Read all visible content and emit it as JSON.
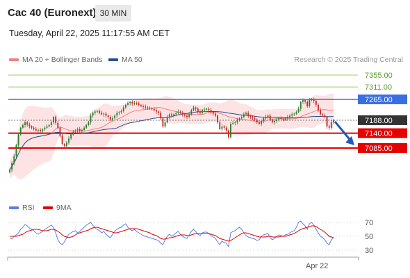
{
  "header": {
    "instrument": "Cac 40 (Euronext)",
    "timeframe": "30 MIN",
    "datetime": "Tuesday, April 22, 2025 11:17:55 AM CET"
  },
  "legend": {
    "ma20_label": "MA 20 + Bollinger Bands",
    "ma50_label": "MA 50",
    "credit": "Research © 2025 Trading Central",
    "rsi_label": "RSI",
    "rsi_ma_label": "9MA"
  },
  "colors": {
    "up": "#2e7d32",
    "down": "#c62828",
    "support": "#e60000",
    "resistance": "#3b6fe0",
    "target": "#9ccc65",
    "current": "#333333",
    "ma20": "#f08080",
    "ma50": "#2a4f8f",
    "band_fill": "#fde0e0",
    "rsi": "#5b7fe0",
    "rsi_ma": "#e00000",
    "arrow": "#2459b3"
  },
  "chart_data": [
    {
      "type": "candlestick",
      "title": "Cac 40 (Euronext)",
      "interval": "30 MIN",
      "y_axis": {
        "min": 6900,
        "max": 7400
      },
      "price_levels": [
        {
          "value": 7355.0,
          "label": "7355.00",
          "kind": "target"
        },
        {
          "value": 7311.0,
          "label": "7311.00",
          "kind": "target"
        },
        {
          "value": 7265.0,
          "label": "7265.00",
          "kind": "resistance"
        },
        {
          "value": 7188.0,
          "label": "7188.00",
          "kind": "current"
        },
        {
          "value": 7140.0,
          "label": "7140.00",
          "kind": "support"
        },
        {
          "value": 7085.0,
          "label": "7085.00",
          "kind": "support"
        }
      ],
      "x_tick_labels": [
        "Apr 22"
      ],
      "close_values": [
        7005,
        7030,
        7055,
        7095,
        7135,
        7160,
        7170,
        7180,
        7172,
        7165,
        7160,
        7155,
        7150,
        7152,
        7148,
        7154,
        7160,
        7165,
        7170,
        7180,
        7200,
        7178,
        7160,
        7130,
        7100,
        7092,
        7105,
        7120,
        7135,
        7145,
        7150,
        7155,
        7148,
        7152,
        7160,
        7170,
        7180,
        7205,
        7215,
        7220,
        7222,
        7215,
        7210,
        7212,
        7205,
        7200,
        7190,
        7195,
        7205,
        7215,
        7218,
        7222,
        7235,
        7245,
        7252,
        7256,
        7250,
        7252,
        7250,
        7244,
        7240,
        7238,
        7235,
        7233,
        7232,
        7230,
        7225,
        7220,
        7215,
        7195,
        7165,
        7180,
        7200,
        7210,
        7205,
        7210,
        7215,
        7220,
        7215,
        7210,
        7205,
        7200,
        7210,
        7225,
        7235,
        7230,
        7220,
        7215,
        7225,
        7228,
        7230,
        7225,
        7218,
        7212,
        7205,
        7180,
        7155,
        7165,
        7160,
        7150,
        7125,
        7175,
        7178,
        7180,
        7190,
        7195,
        7200,
        7210,
        7215,
        7205,
        7200,
        7195,
        7190,
        7180,
        7175,
        7185,
        7195,
        7200,
        7205,
        7190,
        7180,
        7185,
        7190,
        7196,
        7193,
        7189,
        7195,
        7200,
        7205,
        7210,
        7212,
        7218,
        7230,
        7255,
        7262,
        7256,
        7240,
        7262,
        7265,
        7260,
        7245,
        7225,
        7210,
        7206,
        7200,
        7165,
        7160,
        7180,
        7188
      ]
    },
    {
      "type": "line",
      "title": "RSI",
      "series": [
        {
          "name": "RSI",
          "values": [
            48,
            46,
            50,
            52,
            55,
            60,
            63,
            67,
            65,
            62,
            60,
            58,
            55,
            53,
            55,
            57,
            60,
            62,
            64,
            66,
            63,
            55,
            45,
            40,
            38,
            42,
            48,
            53,
            55,
            57,
            58,
            55,
            57,
            60,
            63,
            66,
            68,
            70,
            66,
            62,
            60,
            58,
            55,
            57,
            53,
            50,
            48,
            53,
            57,
            60,
            62,
            63,
            66,
            68,
            63,
            60,
            58,
            60,
            57,
            55,
            53,
            51,
            50,
            49,
            48,
            47,
            46,
            45,
            44,
            40,
            38,
            45,
            50,
            53,
            50,
            52,
            55,
            57,
            53,
            50,
            48,
            47,
            52,
            57,
            60,
            57,
            53,
            51,
            55,
            56,
            56,
            54,
            51,
            49,
            47,
            42,
            38,
            43,
            41,
            40,
            35,
            55,
            57,
            58,
            61,
            63,
            60,
            55,
            51,
            49,
            48,
            47,
            46,
            44,
            45,
            50,
            52,
            53,
            54,
            48,
            45,
            47,
            50,
            52,
            51,
            50,
            52,
            53,
            55,
            57,
            58,
            63,
            70,
            72,
            68,
            65,
            60,
            68,
            70,
            66,
            60,
            55,
            50,
            48,
            45,
            40,
            38,
            45,
            48
          ]
        },
        {
          "name": "9MA",
          "values": [
            50,
            50,
            50,
            50,
            51,
            52,
            53,
            55,
            57,
            58,
            59,
            60,
            60,
            60,
            59,
            58,
            58,
            58,
            59,
            60,
            60,
            59,
            57,
            55,
            52,
            50,
            49,
            48,
            49,
            50,
            52,
            54,
            55,
            56,
            57,
            58,
            59,
            61,
            62,
            63,
            63,
            62,
            61,
            60,
            59,
            58,
            57,
            56,
            55,
            55,
            56,
            57,
            58,
            59,
            60,
            61,
            61,
            61,
            61,
            60,
            59,
            58,
            57,
            56,
            55,
            53,
            52,
            51,
            49,
            47,
            46,
            46,
            47,
            48,
            48,
            49,
            50,
            51,
            52,
            52,
            52,
            51,
            51,
            52,
            53,
            54,
            54,
            54,
            54,
            54,
            54,
            54,
            53,
            52,
            51,
            49,
            47,
            46,
            45,
            44,
            43,
            44,
            46,
            48,
            50,
            52,
            54,
            55,
            55,
            54,
            53,
            52,
            51,
            50,
            49,
            49,
            49,
            49,
            50,
            50,
            49,
            49,
            49,
            49,
            50,
            50,
            50,
            51,
            52,
            53,
            54,
            56,
            58,
            60,
            61,
            62,
            63,
            64,
            65,
            65,
            64,
            62,
            60,
            58,
            56,
            53,
            50,
            49,
            48
          ]
        }
      ],
      "y_tick_labels": [
        "70",
        "50",
        "30"
      ],
      "y_axis": {
        "min": 20,
        "max": 80
      }
    }
  ]
}
